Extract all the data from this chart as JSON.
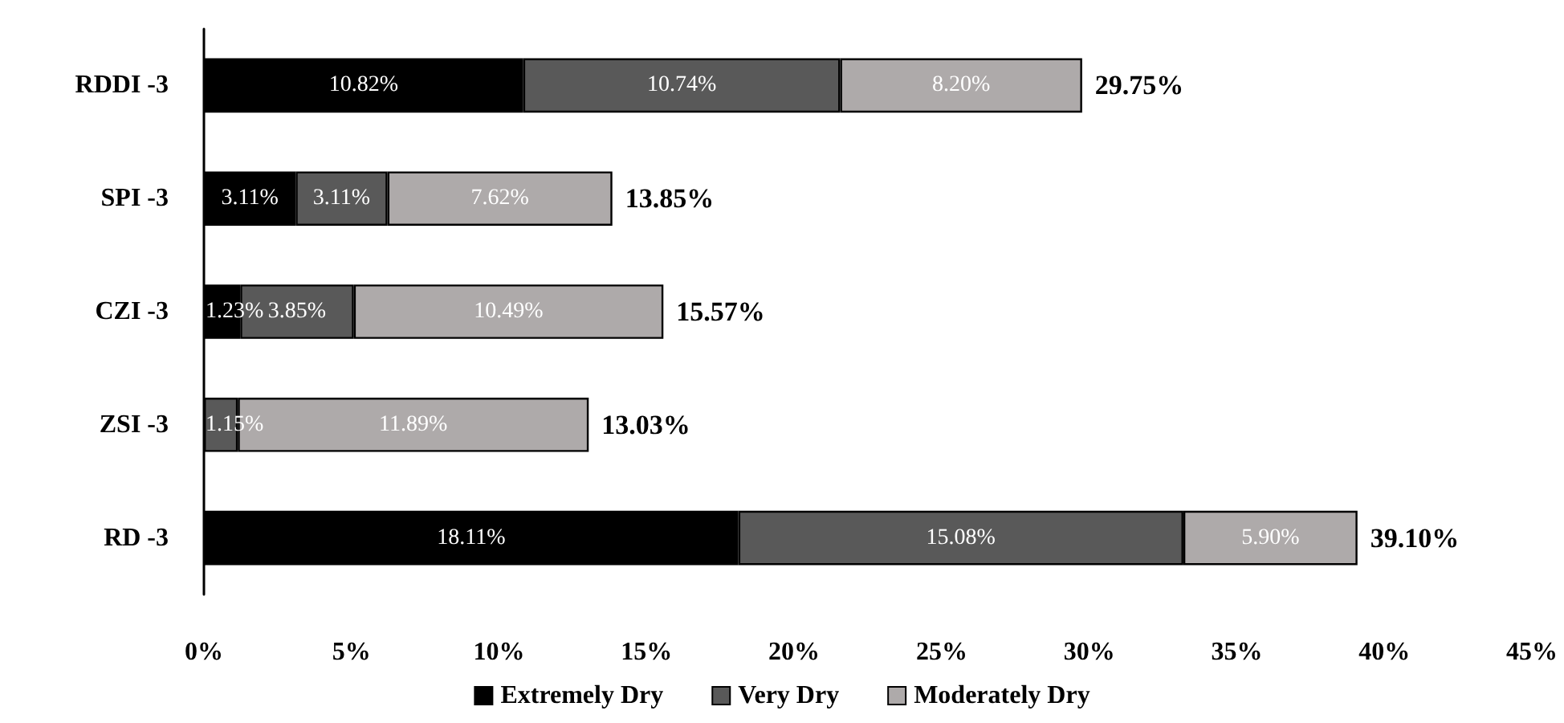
{
  "chart_data": {
    "type": "bar",
    "orientation": "horizontal",
    "stacked": true,
    "categories": [
      "RDDI -3",
      "SPI -3",
      "CZI -3",
      "ZSI -3",
      "RD -3"
    ],
    "series": [
      {
        "name": "Extremely Dry",
        "color": "#000000",
        "values": [
          10.82,
          3.11,
          1.23,
          null,
          18.11
        ],
        "value_labels": [
          "10.82%",
          "3.11%",
          "1.23%",
          null,
          "18.11%"
        ]
      },
      {
        "name": "Very Dry",
        "color": "#595959",
        "values": [
          10.74,
          3.11,
          3.85,
          1.15,
          15.08
        ],
        "value_labels": [
          "10.74%",
          "3.11%",
          "3.85%",
          "1.15%",
          "15.08%"
        ]
      },
      {
        "name": "Moderately Dry",
        "color": "#aeaaaa",
        "values": [
          8.2,
          7.62,
          10.49,
          11.89,
          5.9
        ],
        "value_labels": [
          "8.20%",
          "7.62%",
          "10.49%",
          "11.89%",
          "5.90%"
        ]
      }
    ],
    "totals": [
      "29.75%",
      "13.85%",
      "15.57%",
      "13.03%",
      "39.10%"
    ],
    "xlim": [
      0,
      45
    ],
    "xticks": [
      {
        "value": 0,
        "label": "0%"
      },
      {
        "value": 5,
        "label": "5%"
      },
      {
        "value": 10,
        "label": "10%"
      },
      {
        "value": 15,
        "label": "15%"
      },
      {
        "value": 20,
        "label": "20%"
      },
      {
        "value": 25,
        "label": "25%"
      },
      {
        "value": 30,
        "label": "30%"
      },
      {
        "value": 35,
        "label": "35%"
      },
      {
        "value": 40,
        "label": "40%"
      },
      {
        "value": 45,
        "label": "45%"
      }
    ],
    "grid": false,
    "legend": "bottom"
  }
}
